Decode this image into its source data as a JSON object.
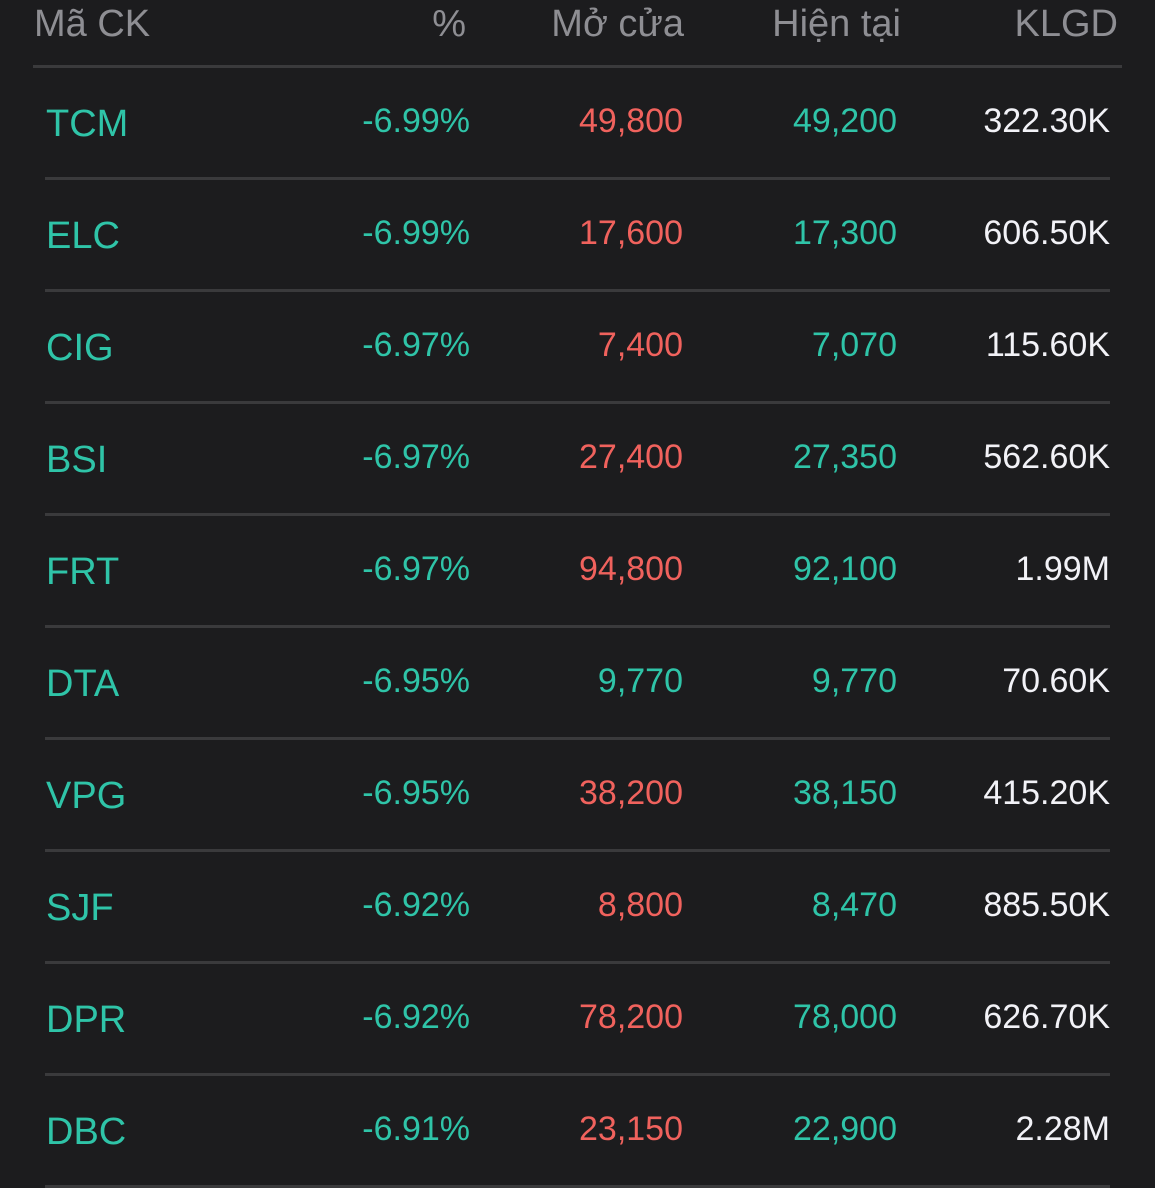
{
  "colors": {
    "background": "#1c1c1e",
    "header_text": "#8e8e93",
    "divider": "#3a3a3c",
    "down_teal": "#2fc4a8",
    "up_red": "#f0625d",
    "volume_white": "#f2f2f7"
  },
  "header": {
    "symbol": "Mã CK",
    "percent": "%",
    "open": "Mở cửa",
    "current": "Hiện tại",
    "volume": "KLGD"
  },
  "rows": [
    {
      "symbol": "TCM",
      "percent": "-6.99%",
      "open": "49,800",
      "open_color": "red",
      "current": "49,200",
      "volume": "322.30K"
    },
    {
      "symbol": "ELC",
      "percent": "-6.99%",
      "open": "17,600",
      "open_color": "red",
      "current": "17,300",
      "volume": "606.50K"
    },
    {
      "symbol": "CIG",
      "percent": "-6.97%",
      "open": "7,400",
      "open_color": "red",
      "current": "7,070",
      "volume": "115.60K"
    },
    {
      "symbol": "BSI",
      "percent": "-6.97%",
      "open": "27,400",
      "open_color": "red",
      "current": "27,350",
      "volume": "562.60K"
    },
    {
      "symbol": "FRT",
      "percent": "-6.97%",
      "open": "94,800",
      "open_color": "red",
      "current": "92,100",
      "volume": "1.99M"
    },
    {
      "symbol": "DTA",
      "percent": "-6.95%",
      "open": "9,770",
      "open_color": "teal",
      "current": "9,770",
      "volume": "70.60K"
    },
    {
      "symbol": "VPG",
      "percent": "-6.95%",
      "open": "38,200",
      "open_color": "red",
      "current": "38,150",
      "volume": "415.20K"
    },
    {
      "symbol": "SJF",
      "percent": "-6.92%",
      "open": "8,800",
      "open_color": "red",
      "current": "8,470",
      "volume": "885.50K"
    },
    {
      "symbol": "DPR",
      "percent": "-6.92%",
      "open": "78,200",
      "open_color": "red",
      "current": "78,000",
      "volume": "626.70K"
    },
    {
      "symbol": "DBC",
      "percent": "-6.91%",
      "open": "23,150",
      "open_color": "red",
      "current": "22,900",
      "volume": "2.28M"
    }
  ]
}
